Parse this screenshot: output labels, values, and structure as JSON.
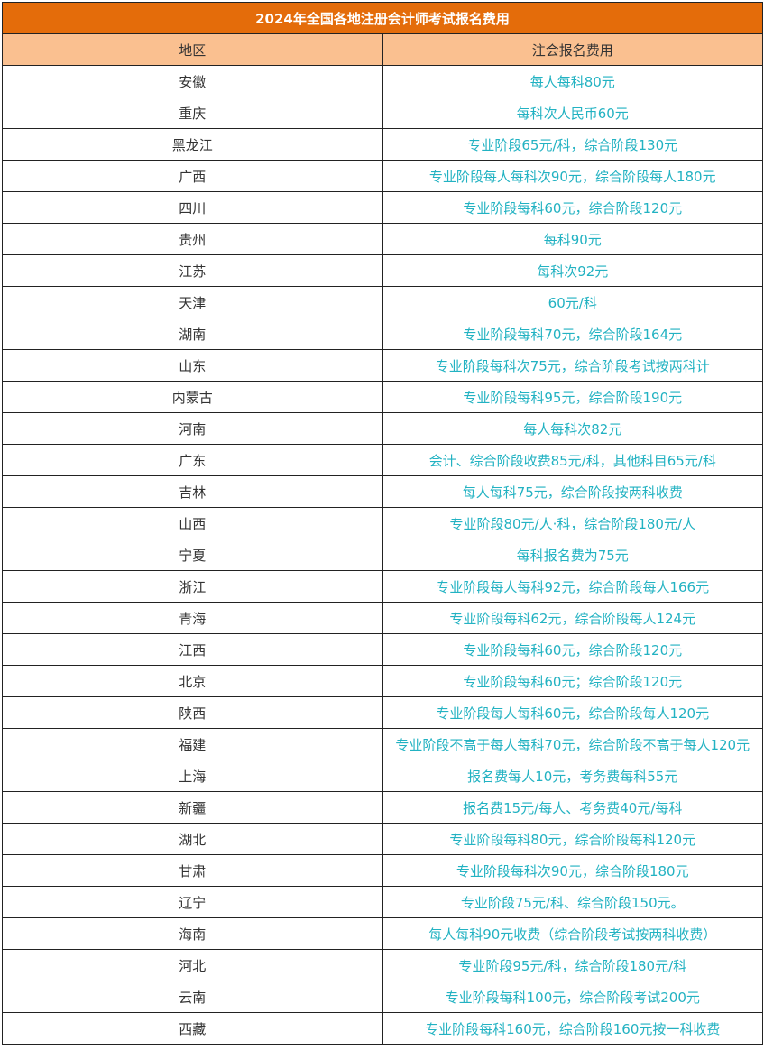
{
  "title": "2024年全国各地注册会计师考试报名费用",
  "headers": {
    "region": "地区",
    "fee": "注会报名费用"
  },
  "colors": {
    "title_bg": "#E46C0A",
    "header_bg": "#FAC090",
    "fee_text": "#22B2C2"
  },
  "rows": [
    {
      "region": "安徽",
      "fee": "每人每科80元"
    },
    {
      "region": "重庆",
      "fee": "每科次人民币60元"
    },
    {
      "region": "黑龙江",
      "fee": "专业阶段65元/科，综合阶段130元"
    },
    {
      "region": "广西",
      "fee": "专业阶段每人每科次90元，综合阶段每人180元"
    },
    {
      "region": "四川",
      "fee": "专业阶段每科60元，综合阶段120元"
    },
    {
      "region": "贵州",
      "fee": "每科90元"
    },
    {
      "region": "江苏",
      "fee": "每科次92元"
    },
    {
      "region": "天津",
      "fee": "60元/科"
    },
    {
      "region": "湖南",
      "fee": "专业阶段每科70元，综合阶段164元"
    },
    {
      "region": "山东",
      "fee": "专业阶段每科次75元，综合阶段考试按两科计"
    },
    {
      "region": "内蒙古",
      "fee": "专业阶段每科95元，综合阶段190元"
    },
    {
      "region": "河南",
      "fee": "每人每科次82元"
    },
    {
      "region": "广东",
      "fee": "会计、综合阶段收费85元/科，其他科目65元/科"
    },
    {
      "region": "吉林",
      "fee": "每人每科75元，综合阶段按两科收费"
    },
    {
      "region": "山西",
      "fee": "专业阶段80元/人·科，综合阶段180元/人"
    },
    {
      "region": "宁夏",
      "fee": "每科报名费为75元"
    },
    {
      "region": "浙江",
      "fee": "专业阶段每人每科92元，综合阶段每人166元"
    },
    {
      "region": "青海",
      "fee": "专业阶段每科62元，综合阶段每人124元"
    },
    {
      "region": "江西",
      "fee": "专业阶段每科60元，综合阶段120元"
    },
    {
      "region": "北京",
      "fee": "专业阶段每科60元；综合阶段120元"
    },
    {
      "region": "陕西",
      "fee": "专业阶段每人每科60元，综合阶段每人120元"
    },
    {
      "region": "福建",
      "fee": "专业阶段不高于每人每科70元，综合阶段不高于每人120元"
    },
    {
      "region": "上海",
      "fee": "报名费每人10元，考务费每科55元"
    },
    {
      "region": "新疆",
      "fee": "报名费15元/每人、考务费40元/每科"
    },
    {
      "region": "湖北",
      "fee": "专业阶段每科80元，综合阶段每科120元"
    },
    {
      "region": "甘肃",
      "fee": "专业阶段每科次90元，综合阶段180元"
    },
    {
      "region": "辽宁",
      "fee": "专业阶段75元/科、综合阶段150元。"
    },
    {
      "region": "海南",
      "fee": "每人每科90元收费（综合阶段考试按两科收费）"
    },
    {
      "region": "河北",
      "fee": "专业阶段95元/科，综合阶段180元/科"
    },
    {
      "region": "云南",
      "fee": "专业阶段每科100元，综合阶段考试200元"
    },
    {
      "region": "西藏",
      "fee": "专业阶段每科160元，综合阶段160元按一科收费"
    }
  ]
}
